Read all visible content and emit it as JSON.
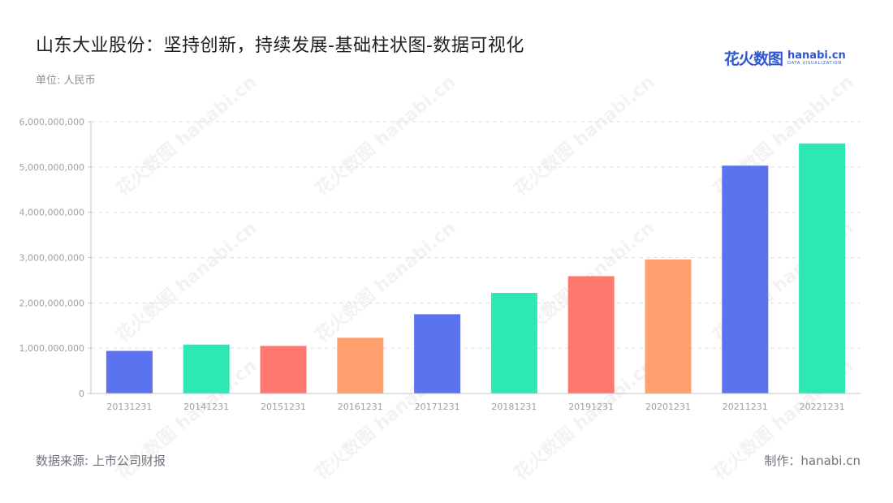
{
  "title": "山东大业股份：坚持创新，持续发展-基础柱状图-数据可视化",
  "unit_label": "单位: 人民币",
  "logo": {
    "cn": "花火数图",
    "en": "hanabi.cn",
    "en_sub": "DATA VISUALIZATION"
  },
  "footer": {
    "source": "数据来源: 上市公司财报",
    "maker": "制作：hanabi.cn"
  },
  "colors": {
    "blue": "#5b73ef",
    "green": "#2de8b2",
    "red": "#ff7870",
    "orange": "#ffa06e"
  },
  "chart_data": {
    "type": "bar",
    "categories": [
      "20131231",
      "20141231",
      "20151231",
      "20161231",
      "20171231",
      "20181231",
      "20191231",
      "20201231",
      "20211231",
      "20221231"
    ],
    "values": [
      940000000,
      1080000000,
      1050000000,
      1230000000,
      1750000000,
      2220000000,
      2590000000,
      2960000000,
      5030000000,
      5520000000
    ],
    "bar_colors": [
      "#5b73ef",
      "#2de8b2",
      "#ff7870",
      "#ffa06e",
      "#5b73ef",
      "#2de8b2",
      "#ff7870",
      "#ffa06e",
      "#5b73ef",
      "#2de8b2"
    ],
    "ylim": [
      0,
      6000000000
    ],
    "yticks": [
      0,
      1000000000,
      2000000000,
      3000000000,
      4000000000,
      5000000000,
      6000000000
    ],
    "ytick_labels": [
      "0",
      "1,000,000,000",
      "2,000,000,000",
      "3,000,000,000",
      "4,000,000,000",
      "5,000,000,000",
      "6,000,000,000"
    ],
    "grid": true,
    "legend": "none"
  }
}
